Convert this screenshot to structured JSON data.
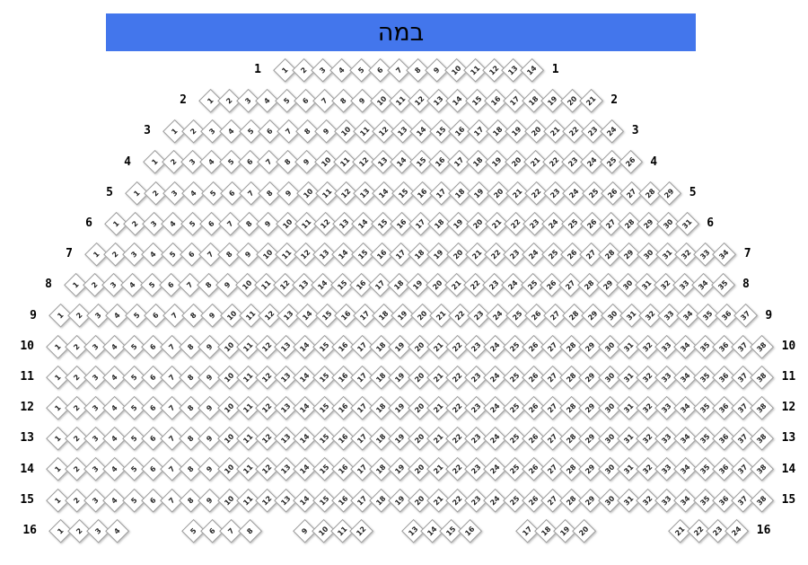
{
  "stage": {
    "label": "במה"
  },
  "colors": {
    "stage_bg": "#4376ec",
    "seat_fill": "#ffffff",
    "seat_border": "#9a9a9a",
    "seat_number": "#222222",
    "row_label": "#000000"
  },
  "rows": [
    {
      "label": "1",
      "groups": [
        [
          1,
          2,
          3,
          4,
          5,
          6,
          7,
          8,
          9,
          10,
          11,
          12,
          13,
          14
        ]
      ]
    },
    {
      "label": "2",
      "groups": [
        [
          1,
          2,
          3,
          4,
          5,
          6,
          7,
          8,
          9,
          10,
          11,
          12,
          13,
          14,
          15,
          16,
          17,
          18,
          19,
          20,
          21
        ]
      ]
    },
    {
      "label": "3",
      "groups": [
        [
          1,
          2,
          3,
          4,
          5,
          6,
          7,
          8,
          9,
          10,
          11,
          12,
          13,
          14,
          15,
          16,
          17,
          18,
          19,
          20,
          21,
          22,
          23,
          24
        ]
      ]
    },
    {
      "label": "4",
      "groups": [
        [
          1,
          2,
          3,
          4,
          5,
          6,
          7,
          8,
          9,
          10,
          11,
          12,
          13,
          14,
          15,
          16,
          17,
          18,
          19,
          20,
          21,
          22,
          23,
          24,
          25,
          26
        ]
      ]
    },
    {
      "label": "5",
      "groups": [
        [
          1,
          2,
          3,
          4,
          5,
          6,
          7,
          8,
          9,
          10,
          11,
          12,
          13,
          14,
          15,
          16,
          17,
          18,
          19,
          20,
          21,
          22,
          23,
          24,
          25,
          26,
          27,
          28,
          29
        ]
      ]
    },
    {
      "label": "6",
      "groups": [
        [
          1,
          2,
          3,
          4,
          5,
          6,
          7,
          8,
          9,
          10,
          11,
          12,
          13,
          14,
          15,
          16,
          17,
          18,
          19,
          20,
          21,
          22,
          23,
          24,
          25,
          26,
          27,
          28,
          29,
          30,
          31
        ]
      ]
    },
    {
      "label": "7",
      "groups": [
        [
          1,
          2,
          3,
          4,
          5,
          6,
          7,
          8,
          9,
          10,
          11,
          12,
          13,
          14,
          15,
          16,
          17,
          18,
          19,
          20,
          21,
          22,
          23,
          24,
          25,
          26,
          27,
          28,
          29,
          30,
          31,
          32,
          33,
          34
        ]
      ]
    },
    {
      "label": "8",
      "groups": [
        [
          1,
          2,
          3,
          4,
          5,
          6,
          7,
          8,
          9,
          10,
          11,
          12,
          13,
          14,
          15,
          16,
          17,
          18,
          19,
          20,
          21,
          22,
          23,
          24,
          25,
          26,
          27,
          28,
          29,
          30,
          31,
          32,
          33,
          34,
          35
        ]
      ]
    },
    {
      "label": "9",
      "groups": [
        [
          1,
          2,
          3,
          4,
          5,
          6,
          7,
          8,
          9,
          10,
          11,
          12,
          13,
          14,
          15,
          16,
          17,
          18,
          19,
          20,
          21,
          22,
          23,
          24,
          25,
          26,
          27,
          28,
          29,
          30,
          31,
          32,
          33,
          34,
          35,
          36,
          37
        ]
      ]
    },
    {
      "label": "10",
      "groups": [
        [
          1,
          2,
          3,
          4,
          5,
          6,
          7,
          8,
          9,
          10,
          11,
          12,
          13,
          14,
          15,
          16,
          17,
          18,
          19,
          20,
          21,
          22,
          23,
          24,
          25,
          26,
          27,
          28,
          29,
          30,
          31,
          32,
          33,
          34,
          35,
          36,
          37,
          38
        ]
      ]
    },
    {
      "label": "11",
      "groups": [
        [
          1,
          2,
          3,
          4,
          5,
          6,
          7,
          8,
          9,
          10,
          11,
          12,
          13,
          14,
          15,
          16,
          17,
          18,
          19,
          20,
          21,
          22,
          23,
          24,
          25,
          26,
          27,
          28,
          29,
          30,
          31,
          32,
          33,
          34,
          35,
          36,
          37,
          38
        ]
      ]
    },
    {
      "label": "12",
      "groups": [
        [
          1,
          2,
          3,
          4,
          5,
          6,
          7,
          8,
          9,
          10,
          11,
          12,
          13,
          14,
          15,
          16,
          17,
          18,
          19,
          20,
          21,
          22,
          23,
          24,
          25,
          26,
          27,
          28,
          29,
          30,
          31,
          32,
          33,
          34,
          35,
          36,
          37,
          38
        ]
      ]
    },
    {
      "label": "13",
      "groups": [
        [
          1,
          2,
          3,
          4,
          5,
          6,
          7,
          8,
          9,
          10,
          11,
          12,
          13,
          14,
          15,
          16,
          17,
          18,
          19,
          20,
          21,
          22,
          23,
          24,
          25,
          26,
          27,
          28,
          29,
          30,
          31,
          32,
          33,
          34,
          35,
          36,
          37,
          38
        ]
      ]
    },
    {
      "label": "14",
      "groups": [
        [
          1,
          2,
          3,
          4,
          5,
          6,
          7,
          8,
          9,
          10,
          11,
          12,
          13,
          14,
          15,
          16,
          17,
          18,
          19,
          20,
          21,
          22,
          23,
          24,
          25,
          26,
          27,
          28,
          29,
          30,
          31,
          32,
          33,
          34,
          35,
          36,
          37,
          38
        ]
      ]
    },
    {
      "label": "15",
      "groups": [
        [
          1,
          2,
          3,
          4,
          5,
          6,
          7,
          8,
          9,
          10,
          11,
          12,
          13,
          14,
          15,
          16,
          17,
          18,
          19,
          20,
          21,
          22,
          23,
          24,
          25,
          26,
          27,
          28,
          29,
          30,
          31,
          32,
          33,
          34,
          35,
          36,
          37,
          38
        ]
      ]
    },
    {
      "label": "16",
      "groups": [
        [
          1,
          2,
          3,
          4
        ],
        [
          5,
          6,
          7,
          8
        ],
        [
          9,
          10,
          11,
          12
        ],
        [
          13,
          14,
          15,
          16
        ],
        [
          17,
          18,
          19,
          20
        ],
        [
          21,
          22,
          23,
          24
        ]
      ]
    }
  ]
}
